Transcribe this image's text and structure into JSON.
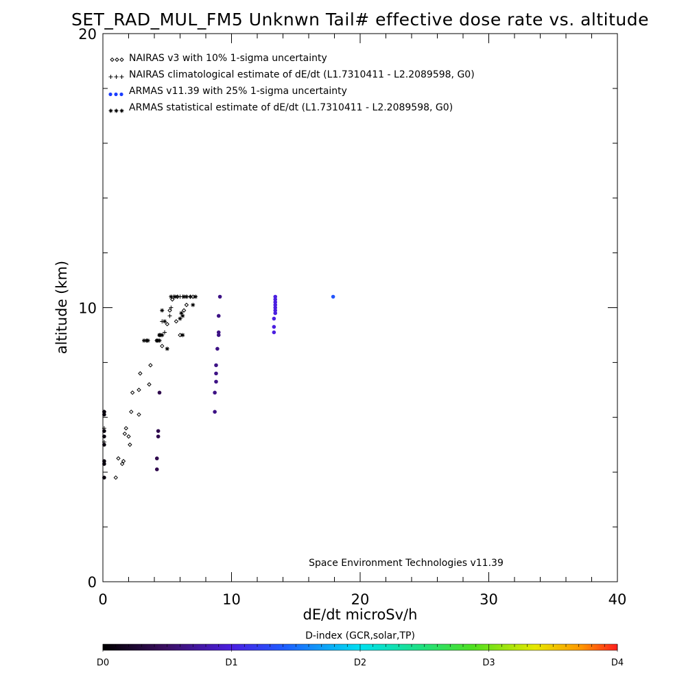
{
  "chart_data": {
    "type": "scatter",
    "title": "SET_RAD_MUL_FM5 Unknwn Tail#  effective dose rate vs. altitude",
    "xlabel": "dE/dt microSv/h",
    "ylabel": "altitude (km)",
    "xlim": [
      0,
      40
    ],
    "ylim": [
      0,
      20
    ],
    "xticks": [
      "0",
      "10",
      "20",
      "30",
      "40"
    ],
    "yticks": [
      "0",
      "10",
      "20"
    ],
    "grid": false,
    "legend_position": "top-left",
    "credit": "Space Environment Technologies v11.39",
    "colorbar": {
      "title": "D-index (GCR,solar,TP)",
      "labels": [
        {
          "text": "D0",
          "value": 0
        },
        {
          "text": "D1",
          "value": 1
        },
        {
          "text": "D2",
          "value": 2
        },
        {
          "text": "D3",
          "value": 3
        },
        {
          "text": "D4",
          "value": 4
        }
      ]
    },
    "series": [
      {
        "name": "NAIRAS v3 with 10% 1-sigma uncertainty",
        "marker": "diamond",
        "color": "#000000",
        "points": [
          [
            1.0,
            3.8
          ],
          [
            1.2,
            4.5
          ],
          [
            1.5,
            4.3
          ],
          [
            1.6,
            4.4
          ],
          [
            1.7,
            5.4
          ],
          [
            1.8,
            5.6
          ],
          [
            2.0,
            5.3
          ],
          [
            2.1,
            5.0
          ],
          [
            2.2,
            6.2
          ],
          [
            2.3,
            6.9
          ],
          [
            2.8,
            6.1
          ],
          [
            2.8,
            7.0
          ],
          [
            2.9,
            7.6
          ],
          [
            3.6,
            7.2
          ],
          [
            3.7,
            7.9
          ],
          [
            4.2,
            8.8
          ],
          [
            4.4,
            9.0
          ],
          [
            4.6,
            8.6
          ],
          [
            5.0,
            9.4
          ],
          [
            5.2,
            9.9
          ],
          [
            5.4,
            10.3
          ],
          [
            5.7,
            9.5
          ],
          [
            5.8,
            10.4
          ],
          [
            6.0,
            9.0
          ],
          [
            6.3,
            9.9
          ],
          [
            6.5,
            10.1
          ],
          [
            6.8,
            10.4
          ],
          [
            7.0,
            10.4
          ]
        ]
      },
      {
        "name": "NAIRAS climatological estimate of dE/dt (L1.7310411 - L2.2089598, G0)",
        "marker": "plus",
        "color": "#000000",
        "points": [
          [
            0.1,
            6.2
          ],
          [
            0.1,
            5.6
          ],
          [
            0.1,
            5.1
          ],
          [
            3.2,
            8.8
          ],
          [
            3.4,
            8.8
          ],
          [
            4.2,
            8.8
          ],
          [
            4.4,
            9.0
          ],
          [
            4.6,
            9.5
          ],
          [
            4.8,
            9.1
          ],
          [
            5.2,
            9.7
          ],
          [
            5.3,
            10.0
          ],
          [
            5.5,
            10.4
          ],
          [
            5.8,
            10.4
          ],
          [
            6.0,
            10.4
          ],
          [
            6.2,
            10.4
          ],
          [
            6.5,
            10.4
          ],
          [
            6.8,
            10.4
          ]
        ]
      },
      {
        "name": "ARMAS v11.39 with 25% 1-sigma uncertainty",
        "marker": "dot",
        "color": "#1a3cff",
        "points": [
          [
            0.1,
            3.8
          ],
          [
            0.1,
            4.3
          ],
          [
            0.1,
            4.4
          ],
          [
            0.1,
            5.0
          ],
          [
            0.1,
            5.3
          ],
          [
            0.1,
            5.5
          ],
          [
            0.1,
            6.1
          ],
          [
            0.1,
            6.2
          ],
          [
            4.2,
            4.1
          ],
          [
            4.2,
            4.5
          ],
          [
            4.3,
            5.3
          ],
          [
            4.3,
            5.5
          ],
          [
            4.4,
            6.9
          ],
          [
            8.7,
            6.2
          ],
          [
            8.7,
            6.9
          ],
          [
            8.8,
            7.3
          ],
          [
            8.8,
            7.6
          ],
          [
            8.8,
            7.9
          ],
          [
            8.9,
            8.5
          ],
          [
            9.0,
            9.0
          ],
          [
            9.0,
            9.1
          ],
          [
            9.0,
            9.7
          ],
          [
            9.1,
            10.4
          ],
          [
            13.3,
            9.1
          ],
          [
            13.3,
            9.3
          ],
          [
            13.3,
            9.6
          ],
          [
            13.4,
            9.8
          ],
          [
            13.4,
            9.9
          ],
          [
            13.4,
            10.0
          ],
          [
            13.4,
            10.1
          ],
          [
            13.4,
            10.2
          ],
          [
            13.4,
            10.3
          ],
          [
            13.4,
            10.4
          ],
          [
            17.9,
            10.4
          ]
        ],
        "d_index": [
          0.1,
          0.1,
          0.1,
          0.1,
          0.1,
          0.1,
          0.1,
          0.1,
          0.6,
          0.6,
          0.6,
          0.6,
          0.6,
          1.1,
          1.1,
          1.1,
          1.1,
          1.1,
          1.1,
          1.1,
          1.1,
          1.1,
          1.1,
          1.5,
          1.5,
          1.5,
          1.5,
          1.5,
          1.5,
          1.5,
          1.5,
          1.5,
          1.5,
          1.95
        ]
      },
      {
        "name": "ARMAS statistical estimate of dE/dt (L1.7310411 - L2.2089598, G0)",
        "marker": "asterisk",
        "color": "#000000",
        "points": [
          [
            3.2,
            8.8
          ],
          [
            3.4,
            8.8
          ],
          [
            3.5,
            8.8
          ],
          [
            4.2,
            8.8
          ],
          [
            4.3,
            8.8
          ],
          [
            4.4,
            8.8
          ],
          [
            5.0,
            8.5
          ],
          [
            4.4,
            9.0
          ],
          [
            4.5,
            9.0
          ],
          [
            4.6,
            9.0
          ],
          [
            4.6,
            9.9
          ],
          [
            4.8,
            9.5
          ],
          [
            5.3,
            10.4
          ],
          [
            5.6,
            10.4
          ],
          [
            6.0,
            9.6
          ],
          [
            6.1,
            9.8
          ],
          [
            6.2,
            9.0
          ],
          [
            6.2,
            9.7
          ],
          [
            6.3,
            10.4
          ],
          [
            6.5,
            10.4
          ],
          [
            7.0,
            10.1
          ],
          [
            7.2,
            10.4
          ]
        ]
      }
    ]
  }
}
